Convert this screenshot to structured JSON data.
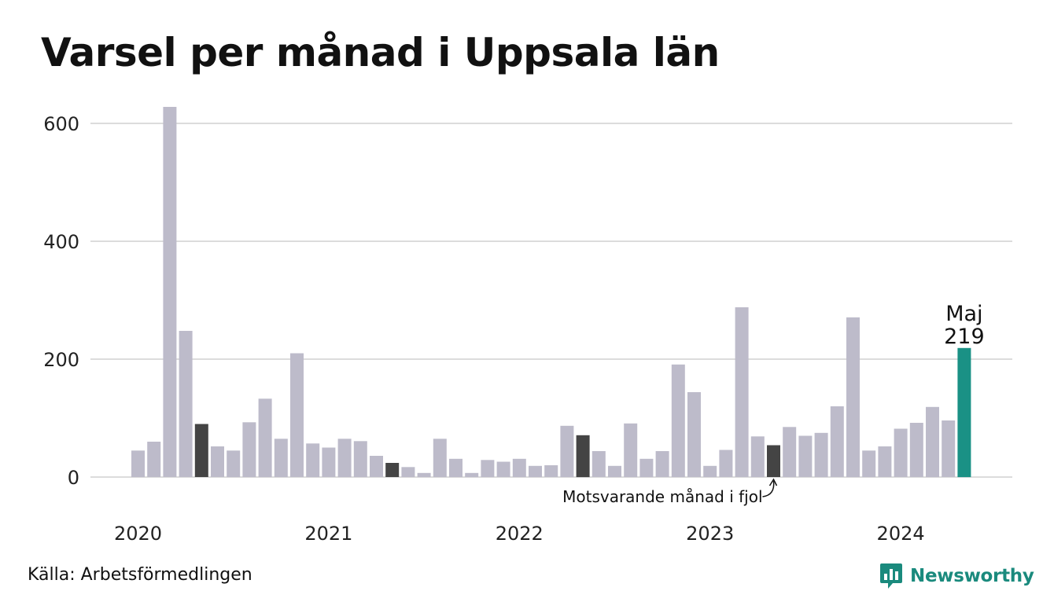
{
  "title": "Varsel per månad i Uppsala län",
  "source": "Källa: Arbetsförmedlingen",
  "brand": {
    "name": "Newsworthy",
    "icon": "newsworthy-logo-icon",
    "color": "#1a8a7d"
  },
  "chart_data": {
    "type": "bar",
    "title": "Varsel per månad i Uppsala län",
    "xlabel": "",
    "ylabel": "",
    "ylim": [
      0,
      640
    ],
    "yticks": [
      0,
      200,
      400,
      600
    ],
    "grid": true,
    "year_labels": [
      "2020",
      "2021",
      "2022",
      "2023",
      "2024"
    ],
    "start": "2020-01",
    "end": "2024-05",
    "values": [
      45,
      60,
      628,
      248,
      90,
      52,
      45,
      93,
      133,
      65,
      210,
      57,
      50,
      65,
      61,
      36,
      24,
      17,
      7,
      65,
      31,
      7,
      29,
      26,
      31,
      19,
      20,
      87,
      71,
      44,
      19,
      91,
      31,
      44,
      191,
      144,
      19,
      46,
      288,
      69,
      54,
      85,
      70,
      75,
      120,
      271,
      45,
      52,
      82,
      92,
      119,
      96,
      219
    ],
    "highlight_index": 52,
    "same_month_last_years_indices": [
      4,
      16,
      28,
      40
    ],
    "colors": {
      "default": "#bdbbca",
      "same_month": "#444444",
      "current": "#1a9185",
      "grid": "#dcdcdc"
    },
    "annotations": {
      "current_label": "Maj",
      "current_value": "219",
      "last_year_label": "Motsvarande månad i fjol"
    }
  }
}
